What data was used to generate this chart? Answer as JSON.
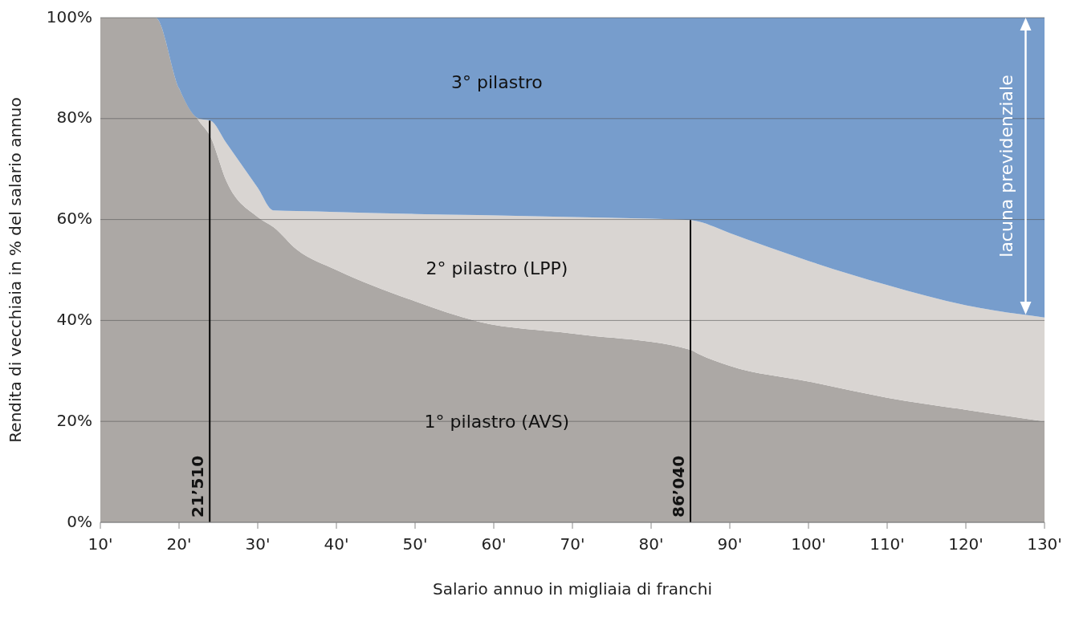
{
  "chart_data": {
    "type": "area",
    "stacked": true,
    "ylabel": "Rendita di vecchiaia in % del salario annuo",
    "xlabel": "Salario annuo in migliaia di franchi",
    "x": [
      10,
      17,
      20,
      22.5,
      24,
      26,
      30,
      32,
      35,
      40,
      50,
      58,
      70,
      85,
      86,
      90,
      100,
      110,
      120,
      130
    ],
    "series": [
      {
        "name": "1° pilastro (AVS)",
        "color": "#aca8a5",
        "values": [
          100,
          100,
          86,
          79.6,
          76.4,
          67.7,
          60.5,
          58.5,
          54,
          50,
          43.8,
          39.8,
          37.4,
          34.2,
          33.4,
          31,
          27.9,
          24.7,
          22.3,
          20
        ]
      },
      {
        "name": "2° pilastro (LPP)",
        "color": "#d9d5d2",
        "values": [
          0,
          0,
          0,
          0.4,
          3.2,
          7.5,
          5.8,
          3.3,
          7.7,
          11.5,
          17.3,
          21.1,
          23.1,
          25.7,
          26.2,
          26.3,
          23.9,
          22.3,
          20.7,
          20.6
        ]
      },
      {
        "name": "3° pilastro",
        "color": "#779dcc",
        "values": [
          0,
          0,
          14,
          20,
          20.4,
          24.8,
          33.7,
          38.2,
          38.3,
          38.5,
          38.9,
          39.1,
          39.5,
          40.1,
          40.4,
          42.7,
          48.2,
          53,
          57,
          59.4
        ]
      }
    ],
    "xlim": [
      10,
      130
    ],
    "ylim": [
      0,
      100
    ],
    "xticks": [
      {
        "value": 10,
        "label": "10'"
      },
      {
        "value": 20,
        "label": "20'"
      },
      {
        "value": 30,
        "label": "30'"
      },
      {
        "value": 40,
        "label": "40'"
      },
      {
        "value": 50,
        "label": "50'"
      },
      {
        "value": 60,
        "label": "60'"
      },
      {
        "value": 70,
        "label": "70'"
      },
      {
        "value": 80,
        "label": "80'"
      },
      {
        "value": 90,
        "label": "90'"
      },
      {
        "value": 100,
        "label": "100'"
      },
      {
        "value": 110,
        "label": "110'"
      },
      {
        "value": 120,
        "label": "120'"
      },
      {
        "value": 130,
        "label": "130'"
      }
    ],
    "yticks": [
      {
        "value": 0,
        "label": "0%"
      },
      {
        "value": 20,
        "label": "20%"
      },
      {
        "value": 40,
        "label": "40%"
      },
      {
        "value": 60,
        "label": "60%"
      },
      {
        "value": 80,
        "label": "80%"
      },
      {
        "value": 100,
        "label": "100%"
      }
    ],
    "grid": "y",
    "ref_lines": [
      {
        "axis": "x",
        "value": 23.9,
        "label": "21’510",
        "color": "#000000"
      },
      {
        "axis": "x",
        "value": 85,
        "label": "86’040",
        "color": "#000000"
      }
    ],
    "annotations": [
      "lacuna previdenziale"
    ]
  }
}
